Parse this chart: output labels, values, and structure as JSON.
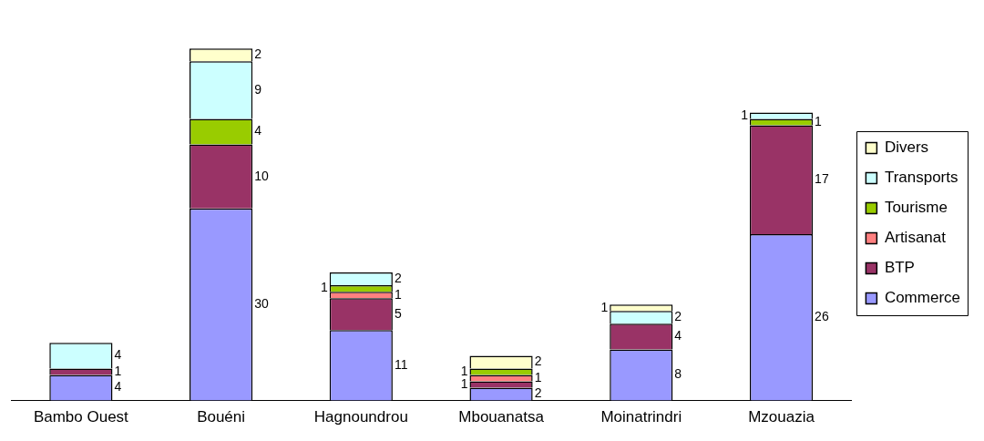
{
  "chart_data": {
    "type": "bar",
    "stacked": true,
    "data_labels": true,
    "legend": "right",
    "grid": false,
    "categories": [
      "Bambo Ouest",
      "Bouéni",
      "Hagnoundrou",
      "Mbouanatsa",
      "Moinatrindri",
      "Mzouazia"
    ],
    "series": [
      {
        "name": "Commerce",
        "color": "#9999ff",
        "values": [
          4,
          30,
          11,
          2,
          8,
          26
        ]
      },
      {
        "name": "BTP",
        "color": "#993366",
        "values": [
          1,
          10,
          5,
          1,
          4,
          17
        ]
      },
      {
        "name": "Artisanat",
        "color": "#ff8080",
        "values": [
          null,
          null,
          1,
          1,
          null,
          null
        ]
      },
      {
        "name": "Tourisme",
        "color": "#99cc00",
        "values": [
          null,
          4,
          1,
          1,
          null,
          1
        ]
      },
      {
        "name": "Transports",
        "color": "#ccffff",
        "values": [
          4,
          9,
          2,
          null,
          2,
          1
        ]
      },
      {
        "name": "Divers",
        "color": "#ffffcc",
        "values": [
          null,
          2,
          null,
          2,
          1,
          null
        ]
      }
    ]
  }
}
